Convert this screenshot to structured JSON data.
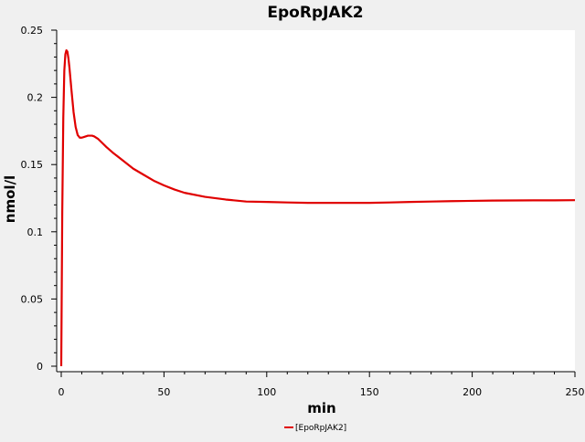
{
  "chart_data": {
    "type": "line",
    "title": "EpoRpJAK2",
    "xlabel": "min",
    "ylabel": "nmol/l",
    "xlim": [
      0,
      250
    ],
    "ylim": [
      0,
      0.25
    ],
    "x_ticks": [
      0,
      50,
      100,
      150,
      200,
      250
    ],
    "x_tick_labels": [
      "0",
      "50",
      "100",
      "150",
      "200",
      "250"
    ],
    "y_ticks": [
      0,
      0.05,
      0.1,
      0.15,
      0.2,
      0.25
    ],
    "y_tick_labels": [
      "0",
      "0.05",
      "0.1",
      "0.15",
      "0.2",
      "0.25"
    ],
    "grid": false,
    "legend": "bottom-center",
    "series": [
      {
        "name": "[EpoRpJAK2]",
        "color": "#e00000",
        "x": [
          0,
          0.5,
          1,
          1.5,
          2,
          2.5,
          3,
          3.5,
          4,
          5,
          6,
          7,
          8,
          9,
          10,
          11,
          12,
          13,
          14,
          15,
          16,
          18,
          20,
          22,
          25,
          30,
          35,
          40,
          45,
          50,
          55,
          60,
          70,
          80,
          90,
          100,
          110,
          120,
          130,
          140,
          150,
          160,
          170,
          180,
          190,
          200,
          210,
          220,
          230,
          240,
          250
        ],
        "values": [
          0,
          0.115,
          0.185,
          0.22,
          0.232,
          0.235,
          0.234,
          0.229,
          0.222,
          0.205,
          0.189,
          0.178,
          0.172,
          0.17,
          0.17,
          0.1705,
          0.171,
          0.1715,
          0.1715,
          0.1715,
          0.171,
          0.169,
          0.166,
          0.163,
          0.159,
          0.153,
          0.147,
          0.1425,
          0.138,
          0.1345,
          0.1315,
          0.129,
          0.126,
          0.124,
          0.1225,
          0.1222,
          0.1218,
          0.1215,
          0.1215,
          0.1215,
          0.1215,
          0.1218,
          0.1222,
          0.1225,
          0.1228,
          0.123,
          0.1232,
          0.1233,
          0.1234,
          0.1234,
          0.1235
        ]
      }
    ]
  }
}
